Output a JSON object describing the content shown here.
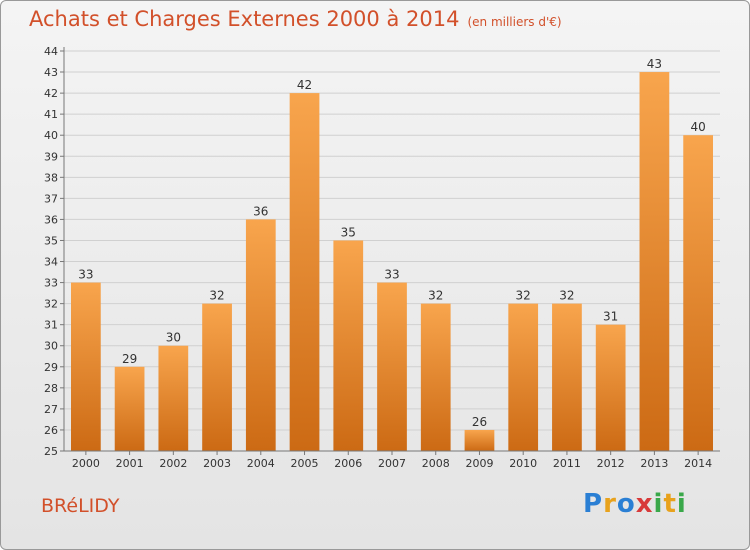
{
  "header": {
    "title": "Achats et Charges Externes 2000 à 2014",
    "subtitle": "(en milliers d'€)"
  },
  "footer": {
    "commune": "BRéLIDY",
    "logo_letters": [
      "P",
      "r",
      "o",
      "x",
      "i",
      "t",
      "i"
    ],
    "logo_colors": [
      "#2a7fd4",
      "#e8a21c",
      "#2a7fd4",
      "#d83a3a",
      "#3aa84a",
      "#e8a21c",
      "#3aa84a"
    ]
  },
  "chart_data": {
    "type": "bar",
    "title": "Achats et Charges Externes 2000 à 2014",
    "subtitle": "(en milliers d'€)",
    "categories": [
      "2000",
      "2001",
      "2002",
      "2003",
      "2004",
      "2005",
      "2006",
      "2007",
      "2008",
      "2009",
      "2010",
      "2011",
      "2012",
      "2013",
      "2014"
    ],
    "values": [
      33,
      29,
      30,
      32,
      36,
      42,
      35,
      33,
      32,
      26,
      32,
      32,
      31,
      43,
      40
    ],
    "ylim": [
      25,
      44
    ],
    "yticks": [
      25,
      26,
      27,
      28,
      29,
      30,
      31,
      32,
      33,
      34,
      35,
      36,
      37,
      38,
      39,
      40,
      41,
      42,
      43,
      44
    ],
    "grid": true,
    "bar_color_light": "#f8a54d",
    "bar_color_dark": "#cc6a14",
    "data_labels": true
  }
}
